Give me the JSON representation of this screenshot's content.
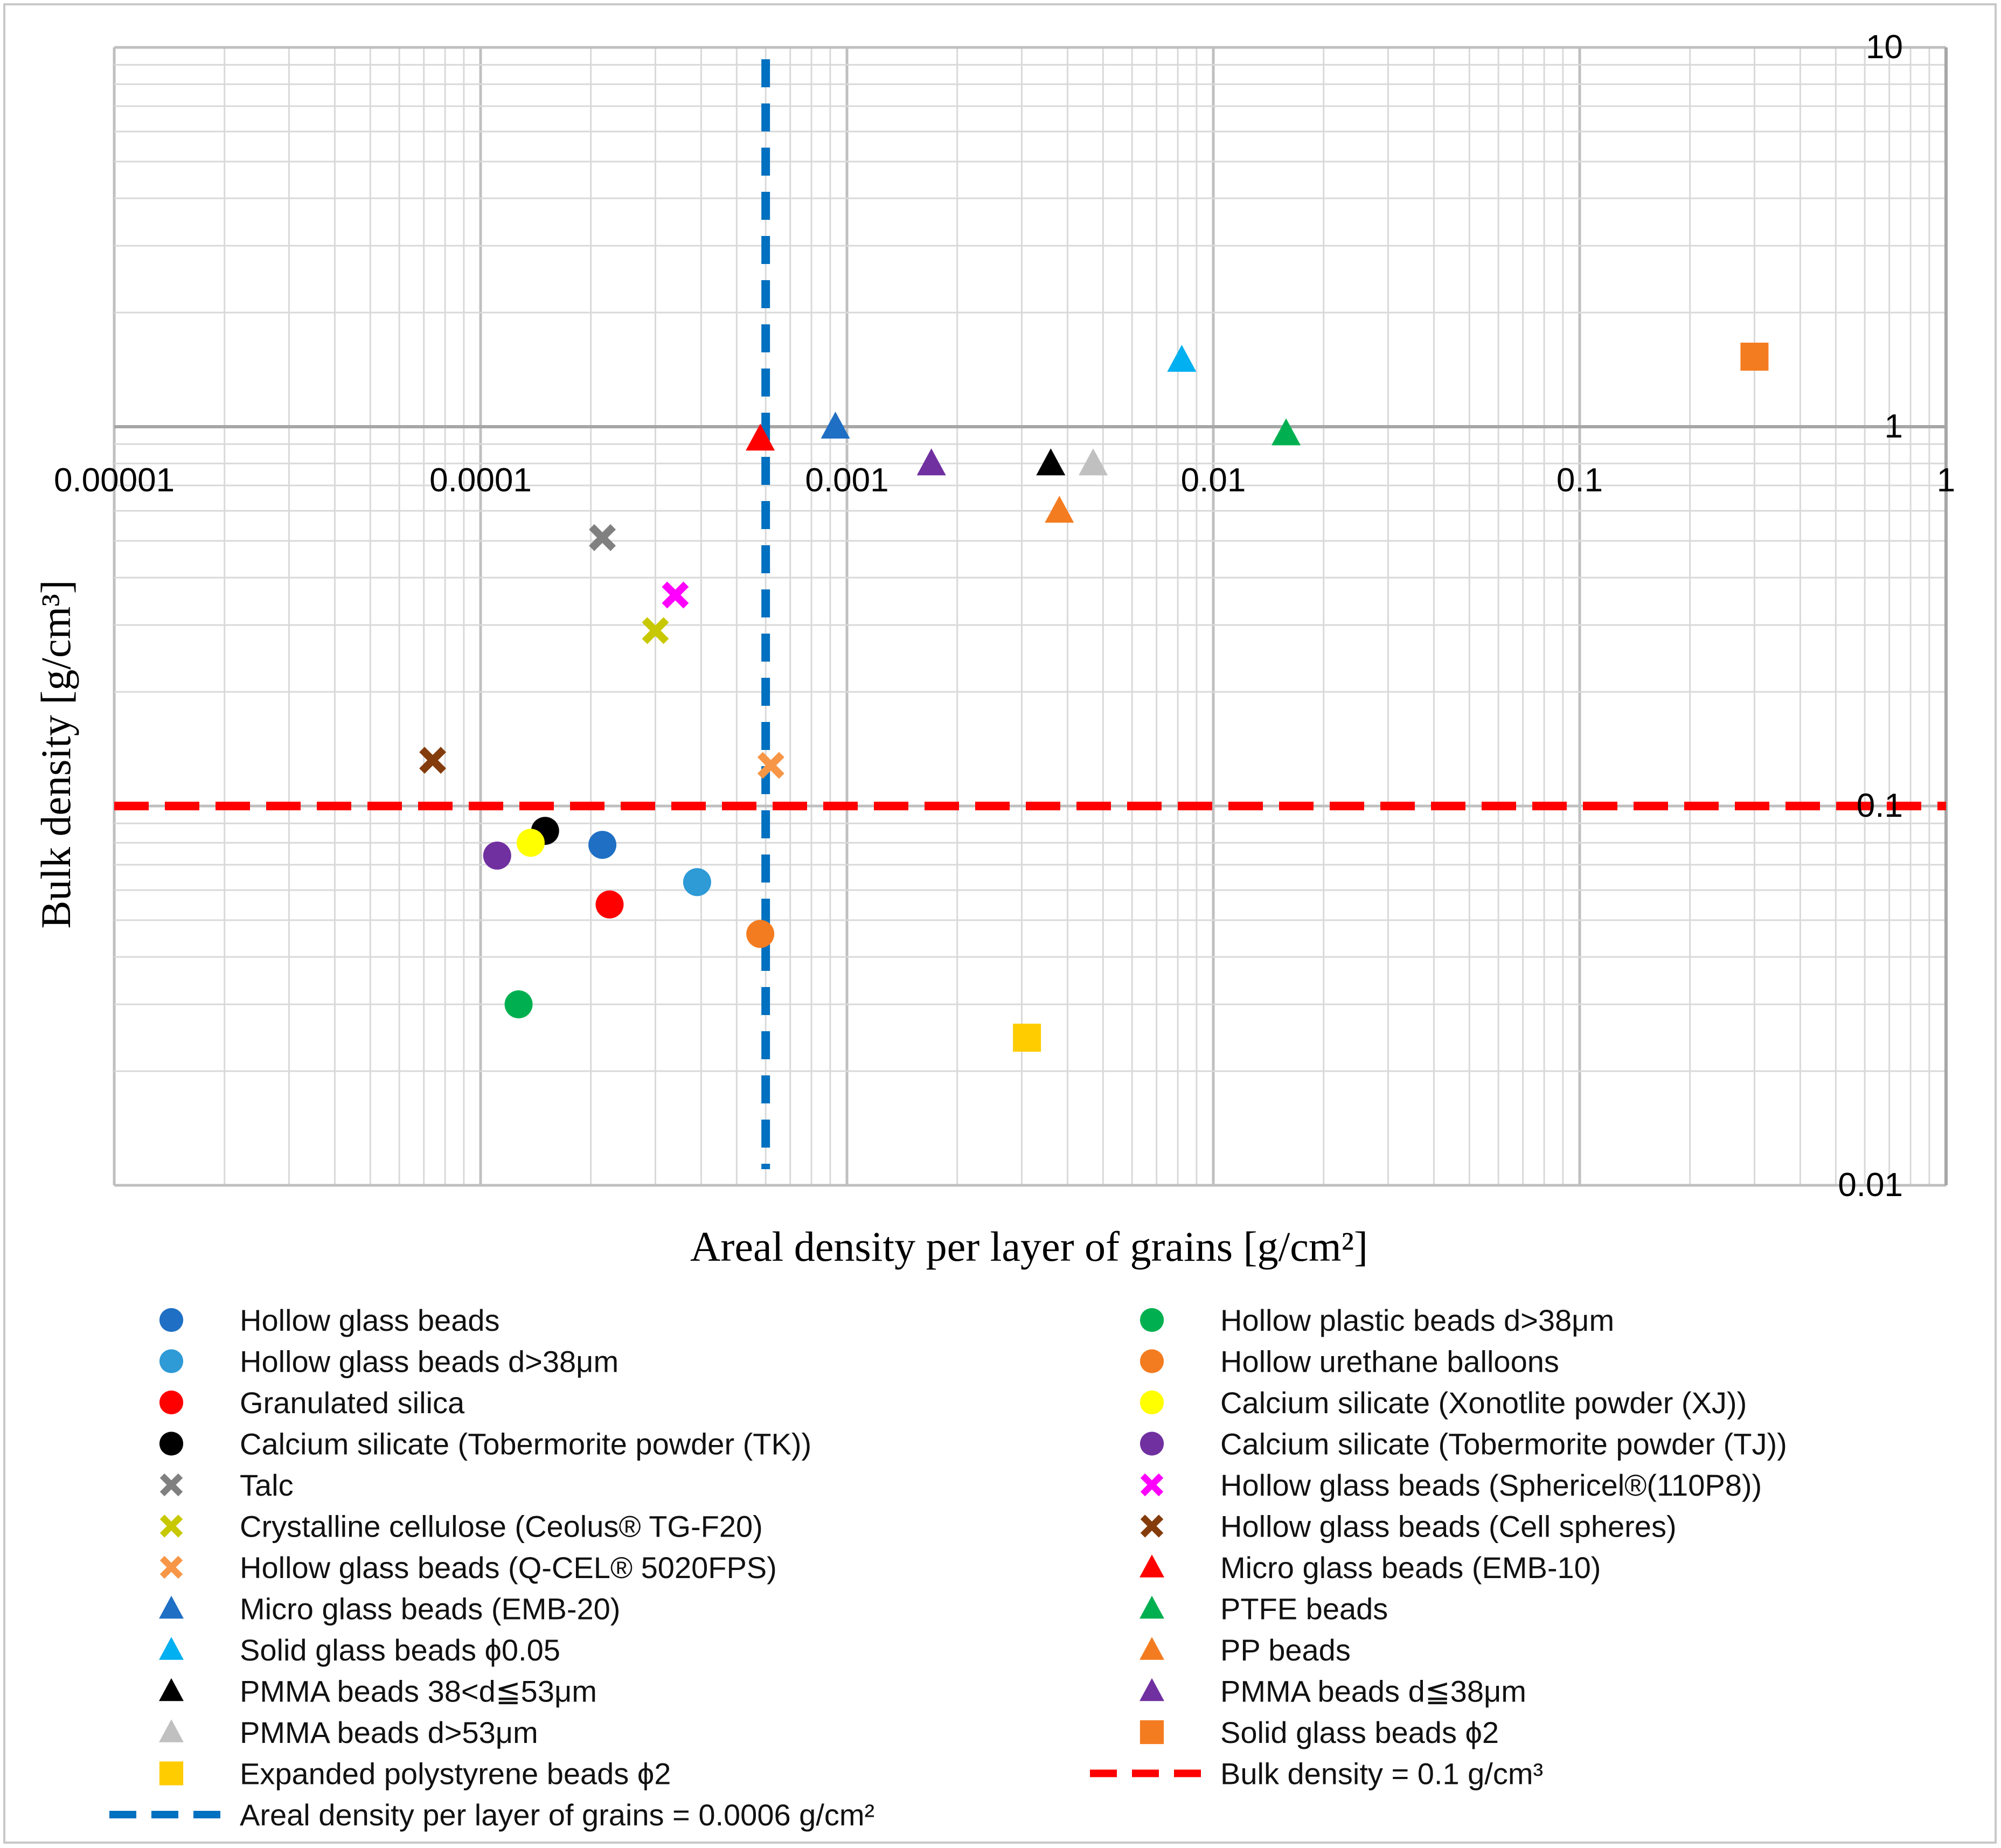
{
  "chart_data": {
    "type": "scatter",
    "xlabel": "Areal density per layer of grains [g/cm²]",
    "ylabel": "Bulk density [g/cm³]",
    "x_scale": "log",
    "y_scale": "log",
    "xlim": [
      1e-05,
      1
    ],
    "ylim": [
      0.01,
      10
    ],
    "x_tick_labels": [
      "0.00001",
      "0.0001",
      "0.001",
      "0.01",
      "0.1",
      "1"
    ],
    "y_tick_labels": [
      "0.01",
      "0.1",
      "1",
      "10"
    ],
    "grid": true,
    "legend_placement": "bottom",
    "series": [
      {
        "name": "Hollow glass beads",
        "marker": "circle",
        "color": "#1f6fc4",
        "x": 0.000215,
        "y": 0.079
      },
      {
        "name": "Hollow glass beads d>38μm",
        "marker": "circle",
        "color": "#2e9ad6",
        "x": 0.00039,
        "y": 0.063
      },
      {
        "name": "Granulated silica",
        "marker": "circle",
        "color": "#ff0000",
        "x": 0.000225,
        "y": 0.055
      },
      {
        "name": "Calcium silicate (Tobermorite powder (TK))",
        "marker": "circle",
        "color": "#000000",
        "x": 0.00015,
        "y": 0.086
      },
      {
        "name": "Talc",
        "marker": "x",
        "color": "#808080",
        "x": 0.000215,
        "y": 0.51
      },
      {
        "name": "Crystalline cellulose (Ceolus® TG-F20)",
        "marker": "x",
        "color": "#c8c800",
        "x": 0.0003,
        "y": 0.29
      },
      {
        "name": "Hollow glass beads (Q-CEL® 5020FPS)",
        "marker": "x",
        "color": "#f79646",
        "x": 0.00062,
        "y": 0.128
      },
      {
        "name": "Micro glass beads (EMB-20)",
        "marker": "triangle",
        "color": "#1f6fc4",
        "x": 0.00093,
        "y": 1.0
      },
      {
        "name": "Solid glass beads ϕ0.05",
        "marker": "triangle",
        "color": "#00b0f0",
        "x": 0.0082,
        "y": 1.5
      },
      {
        "name": "PMMA beads 38<d≦53μm",
        "marker": "triangle",
        "color": "#000000",
        "x": 0.0036,
        "y": 0.8
      },
      {
        "name": "PMMA beads d>53μm",
        "marker": "triangle",
        "color": "#c0c0c0",
        "x": 0.0047,
        "y": 0.8
      },
      {
        "name": "Expanded polystyrene beads ϕ2",
        "marker": "square",
        "color": "#ffcc00",
        "x": 0.0031,
        "y": 0.0245
      },
      {
        "name": "Hollow plastic beads d>38μm",
        "marker": "circle",
        "color": "#00b050",
        "x": 0.000127,
        "y": 0.03
      },
      {
        "name": "Hollow urethane balloons",
        "marker": "circle",
        "color": "#f47c20",
        "x": 0.00058,
        "y": 0.046
      },
      {
        "name": "Calcium silicate (Xonotlite powder (XJ))",
        "marker": "circle",
        "color": "#ffff00",
        "x": 0.000137,
        "y": 0.08
      },
      {
        "name": "Calcium silicate (Tobermorite powder (TJ))",
        "marker": "circle",
        "color": "#7030a0",
        "x": 0.000111,
        "y": 0.074
      },
      {
        "name": "Hollow glass beads (Sphericel®(110P8))",
        "marker": "x",
        "color": "#ff00ff",
        "x": 0.00034,
        "y": 0.36
      },
      {
        "name": "Hollow glass beads (Cell spheres)",
        "marker": "x",
        "color": "#843c0c",
        "x": 7.4e-05,
        "y": 0.132
      },
      {
        "name": "Micro glass beads (EMB-10)",
        "marker": "triangle",
        "color": "#ff0000",
        "x": 0.00058,
        "y": 0.93
      },
      {
        "name": "PTFE beads",
        "marker": "triangle",
        "color": "#00b050",
        "x": 0.0158,
        "y": 0.96
      },
      {
        "name": "PP beads",
        "marker": "triangle",
        "color": "#f47c20",
        "x": 0.0038,
        "y": 0.6
      },
      {
        "name": "PMMA beads d≦38μm",
        "marker": "triangle",
        "color": "#7030a0",
        "x": 0.0017,
        "y": 0.8
      },
      {
        "name": "Solid glass beads ϕ2",
        "marker": "square",
        "color": "#f47c20",
        "x": 0.3,
        "y": 1.53
      }
    ],
    "reference_lines": [
      {
        "name": "Areal density per layer of grains = 0.0006 g/cm²",
        "orientation": "vertical",
        "value": 0.0006,
        "color": "#0070c0",
        "style": "dashed"
      },
      {
        "name": "Bulk density = 0.1 g/cm³",
        "orientation": "horizontal",
        "value": 0.1,
        "color": "#ff0000",
        "style": "dashed"
      }
    ]
  }
}
